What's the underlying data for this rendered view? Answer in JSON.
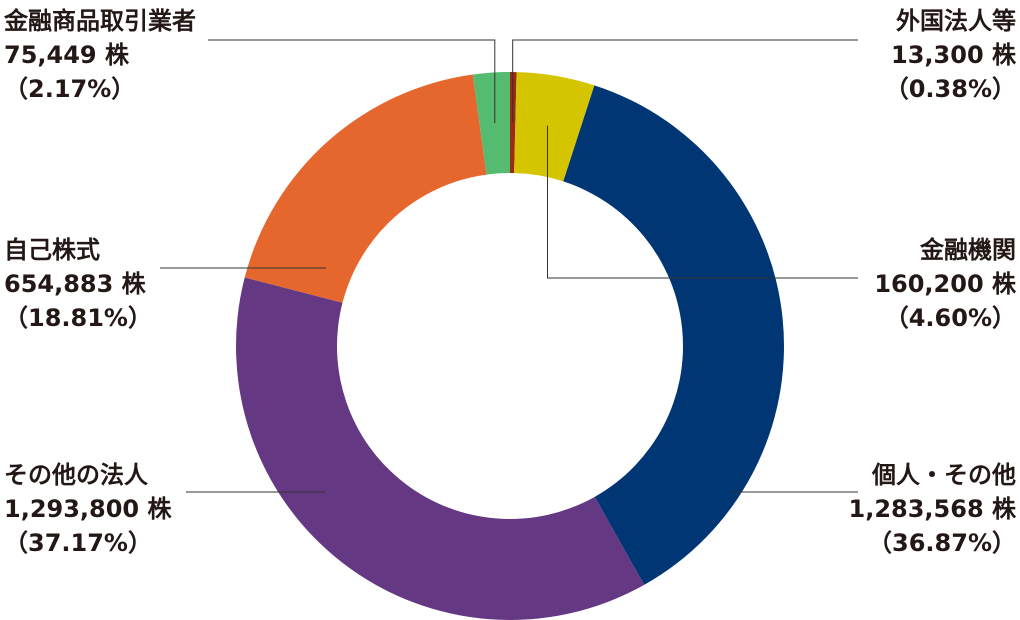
{
  "chart_data": {
    "type": "pie",
    "variant": "donut",
    "title": "",
    "unit": "株",
    "categories": [
      "外国法人等",
      "金融機関",
      "個人・その他",
      "その他の法人",
      "自己株式",
      "金融商品取引業者"
    ],
    "values": [
      13300,
      160200,
      1283568,
      1293800,
      654883,
      75449
    ],
    "value_labels": [
      "13,300 株",
      "160,200 株",
      "1,283,568 株",
      "1,293,800 株",
      "654,883 株",
      "75,449 株"
    ],
    "percent_labels": [
      "（0.38%）",
      "（4.60%）",
      "（36.87%）",
      "（37.17%）",
      "（18.81%）",
      "（2.17%）"
    ],
    "colors": [
      "#9a2a12",
      "#d5c400",
      "#003673",
      "#643883",
      "#e5672d",
      "#55bb70"
    ],
    "start": "top, clockwise",
    "legend": "none"
  }
}
